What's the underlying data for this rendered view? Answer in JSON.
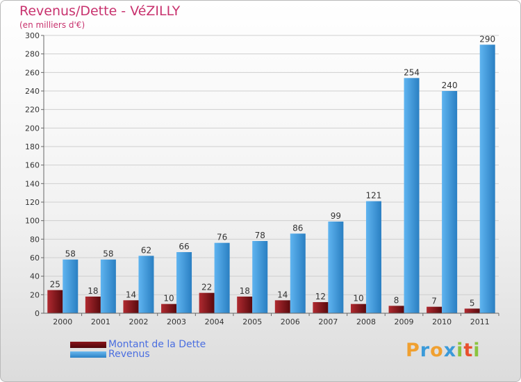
{
  "chart_data": {
    "type": "bar",
    "title": "Revenus/Dette - VéZILLY",
    "subtitle": "(en milliers d'€)",
    "categories": [
      "2000",
      "2001",
      "2002",
      "2003",
      "2004",
      "2005",
      "2006",
      "2007",
      "2008",
      "2009",
      "2010",
      "2011"
    ],
    "series": [
      {
        "name": "Montant de la Dette",
        "color": "#7a0e14",
        "values": [
          25,
          18,
          14,
          10,
          22,
          18,
          14,
          12,
          10,
          8,
          7,
          5
        ]
      },
      {
        "name": "Revenus",
        "color": "#3c9ce0",
        "values": [
          58,
          58,
          62,
          66,
          76,
          78,
          86,
          99,
          121,
          254,
          240,
          290
        ]
      }
    ],
    "ylim": [
      0,
      300
    ],
    "yticks": [
      0,
      20,
      40,
      60,
      80,
      100,
      120,
      140,
      160,
      180,
      200,
      220,
      240,
      260,
      280,
      300
    ],
    "grid": true,
    "xlabel": "",
    "ylabel": "",
    "legend_position": "bottom-left"
  },
  "logo": {
    "letters": [
      "P",
      "r",
      "o",
      "x",
      "i",
      "t",
      "i"
    ],
    "colors": [
      "#f0a030",
      "#3a9ad9",
      "#f0a030",
      "#3a9ad9",
      "#8ac43f",
      "#e8502e",
      "#8ac43f"
    ]
  }
}
